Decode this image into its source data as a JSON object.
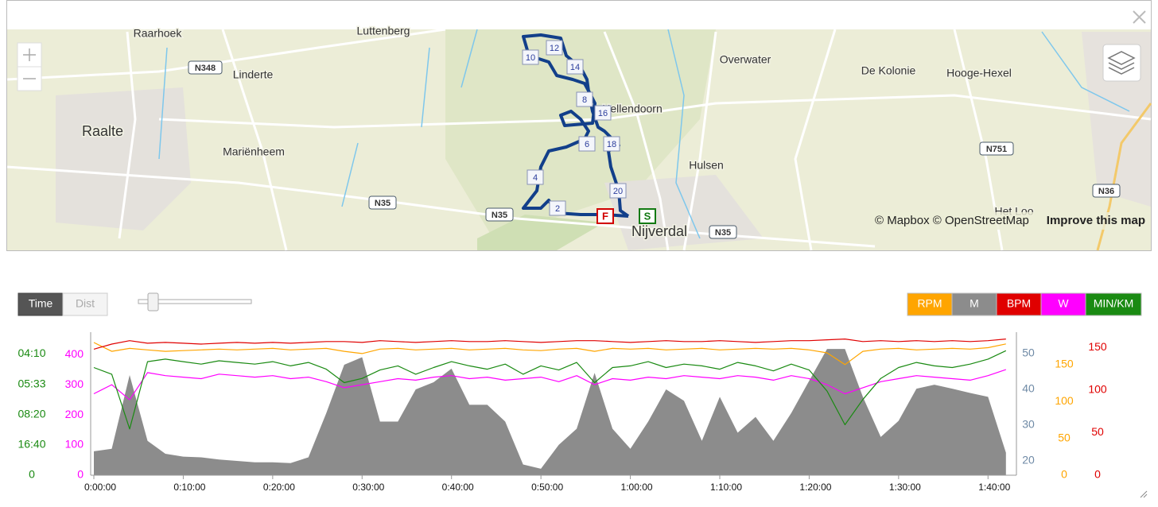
{
  "map": {
    "places": [
      "Raarhoek",
      "Luttenberg",
      "Overwater",
      "De Kolonie",
      "Hooge-Hexel",
      "Linderte",
      "Raalte",
      "Mariënheem",
      "Hellendoorn",
      "Hulsen",
      "Nijverdal",
      "Het Loo"
    ],
    "roads": [
      "N348",
      "N35",
      "N35",
      "N35",
      "N751",
      "N36"
    ],
    "markers": [
      "10",
      "12",
      "14",
      "8",
      "16",
      "6",
      "18",
      "4",
      "20",
      "2",
      "F",
      "S"
    ],
    "attribution": "© Mapbox © OpenStreetMap",
    "improve": "Improve this map"
  },
  "toolbar": {
    "buttons": [
      "Time",
      "Dist"
    ]
  },
  "chart_data": {
    "type": "line",
    "x": [
      0,
      2,
      4,
      6,
      8,
      10,
      12,
      14,
      16,
      18,
      20,
      22,
      24,
      26,
      28,
      30,
      32,
      34,
      36,
      38,
      40,
      42,
      44,
      46,
      48,
      50,
      52,
      54,
      56,
      58,
      60,
      62,
      64,
      66,
      68,
      70,
      72,
      74,
      76,
      78,
      80,
      82,
      84,
      86,
      88,
      90,
      92,
      94,
      96,
      98,
      100,
      102
    ],
    "xlim": [
      0,
      103
    ],
    "xticks": [
      {
        "value": 0,
        "label": "0:00:00"
      },
      {
        "value": 10,
        "label": "0:10:00"
      },
      {
        "value": 20,
        "label": "0:20:00"
      },
      {
        "value": 30,
        "label": "0:30:00"
      },
      {
        "value": 40,
        "label": "0:40:00"
      },
      {
        "value": 50,
        "label": "0:50:00"
      },
      {
        "value": 60,
        "label": "1:00:00"
      },
      {
        "value": 70,
        "label": "1:10:00"
      },
      {
        "value": 80,
        "label": "1:20:00"
      },
      {
        "value": 90,
        "label": "1:30:00"
      },
      {
        "value": 100,
        "label": "1:40:00"
      }
    ],
    "series": [
      {
        "name": "RPM",
        "color": "#ffa500",
        "ylim": [
          0,
          194
        ],
        "yticks": [
          0,
          50,
          100,
          150
        ],
        "values": [
          180,
          168,
          172,
          170,
          168,
          169,
          170,
          171,
          170,
          171,
          172,
          170,
          171,
          172,
          168,
          165,
          171,
          172,
          170,
          171,
          172,
          170,
          171,
          172,
          170,
          169,
          171,
          172,
          168,
          172,
          171,
          172,
          170,
          171,
          172,
          170,
          171,
          172,
          171,
          172,
          170,
          166,
          150,
          168,
          171,
          172,
          170,
          171,
          172,
          171,
          173,
          178
        ]
      },
      {
        "name": "M",
        "color": "#8c8c8c",
        "type": "area",
        "ylim": [
          16,
          56
        ],
        "yticks": [
          20,
          30,
          40,
          50
        ],
        "tick_color": "#6f8aa6",
        "values": [
          22.7,
          23.4,
          44,
          25.6,
          22,
          21.2,
          21,
          20.4,
          20,
          19.6,
          19.6,
          19.4,
          21,
          33.4,
          46.9,
          49,
          31,
          31,
          40,
          42,
          45.8,
          35.7,
          35.7,
          31,
          19,
          17.8,
          24.5,
          29,
          44.6,
          29,
          23.4,
          31,
          40,
          36.8,
          25.6,
          37.9,
          27.9,
          32.3,
          25.6,
          33.4,
          42.4,
          51.3,
          51.3,
          37.9,
          26.7,
          31.2,
          40.2,
          41.3,
          40.2,
          39,
          37.9,
          22.3
        ]
      },
      {
        "name": "BPM",
        "color": "#e00000",
        "ylim": [
          0,
          168
        ],
        "yticks": [
          0,
          50,
          100,
          150
        ],
        "values": [
          148,
          154,
          158,
          155,
          156,
          155,
          154,
          155,
          156,
          155,
          156,
          155,
          156,
          157,
          157,
          156,
          158,
          157,
          156,
          157,
          158,
          157,
          157,
          158,
          157,
          156,
          157,
          158,
          158,
          157,
          156,
          157,
          158,
          157,
          157,
          158,
          157,
          156,
          157,
          158,
          158,
          159,
          160,
          157,
          158,
          157,
          158,
          157,
          158,
          157,
          158,
          160
        ]
      },
      {
        "name": "W",
        "color": "#ff00ff",
        "ylim": [
          0,
          474
        ],
        "yticks": [
          0,
          100,
          200,
          300,
          400
        ],
        "values": [
          270,
          300,
          250,
          340,
          330,
          325,
          320,
          335,
          330,
          325,
          330,
          320,
          325,
          310,
          290,
          300,
          310,
          320,
          315,
          325,
          330,
          320,
          325,
          315,
          320,
          325,
          310,
          330,
          300,
          320,
          315,
          325,
          320,
          330,
          325,
          320,
          330,
          325,
          315,
          330,
          320,
          300,
          270,
          290,
          310,
          320,
          330,
          325,
          320,
          315,
          330,
          350
        ]
      },
      {
        "name": "MIN/KM",
        "color": "#1a8a12",
        "ylim": [
          0,
          17
        ],
        "yticks": [
          0,
          {
            "value": 3.6,
            "label": "16:40"
          },
          {
            "value": 7.2,
            "label": "08:20"
          },
          {
            "value": 10.8,
            "label": "05:33"
          },
          {
            "value": 14.4,
            "label": "04:10"
          }
        ],
        "values": [
          12.8,
          12,
          5.5,
          13.5,
          13.8,
          13.5,
          13.2,
          13.6,
          13.4,
          13.2,
          13.5,
          13,
          13.4,
          12.6,
          11,
          11.5,
          12.5,
          13,
          12,
          12.8,
          13.5,
          13,
          12.6,
          13.2,
          12,
          13,
          12.5,
          13.4,
          11,
          12.8,
          13,
          13.5,
          12.8,
          13.2,
          13,
          12.6,
          13.4,
          13,
          12.4,
          13.2,
          12.5,
          10,
          6,
          9,
          11.5,
          12.8,
          13.4,
          13,
          12.8,
          13.2,
          13.8,
          14.8
        ]
      }
    ]
  }
}
